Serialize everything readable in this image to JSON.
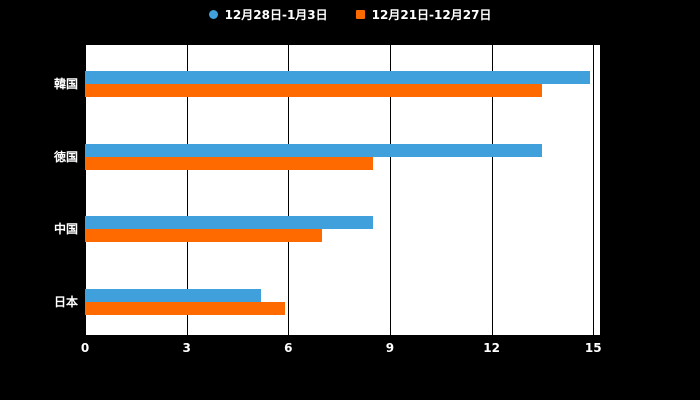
{
  "colors": {
    "background": "#000000",
    "plot_background": "#ffffff",
    "grid": "#000000",
    "text": "#ffffff",
    "series_blue": "#3fa0dc",
    "series_orange": "#ff6a00"
  },
  "chart_data": {
    "type": "bar",
    "orientation": "horizontal",
    "title": "",
    "xlabel": "",
    "ylabel": "",
    "categories": [
      "韓国",
      "徳国",
      "中国",
      "日本"
    ],
    "series": [
      {
        "name": "12月28日-1月3日",
        "color": "#3fa0dc",
        "marker": "circle",
        "values": [
          14.9,
          13.5,
          8.5,
          5.2
        ]
      },
      {
        "name": "12月21日-12月27日",
        "color": "#ff6a00",
        "marker": "square",
        "values": [
          13.5,
          8.5,
          7.0,
          5.9
        ]
      }
    ],
    "xlim": [
      0,
      15.2
    ],
    "xticks": [
      0,
      3,
      6,
      9,
      12,
      15
    ],
    "grid": true,
    "legend_position": "top"
  }
}
